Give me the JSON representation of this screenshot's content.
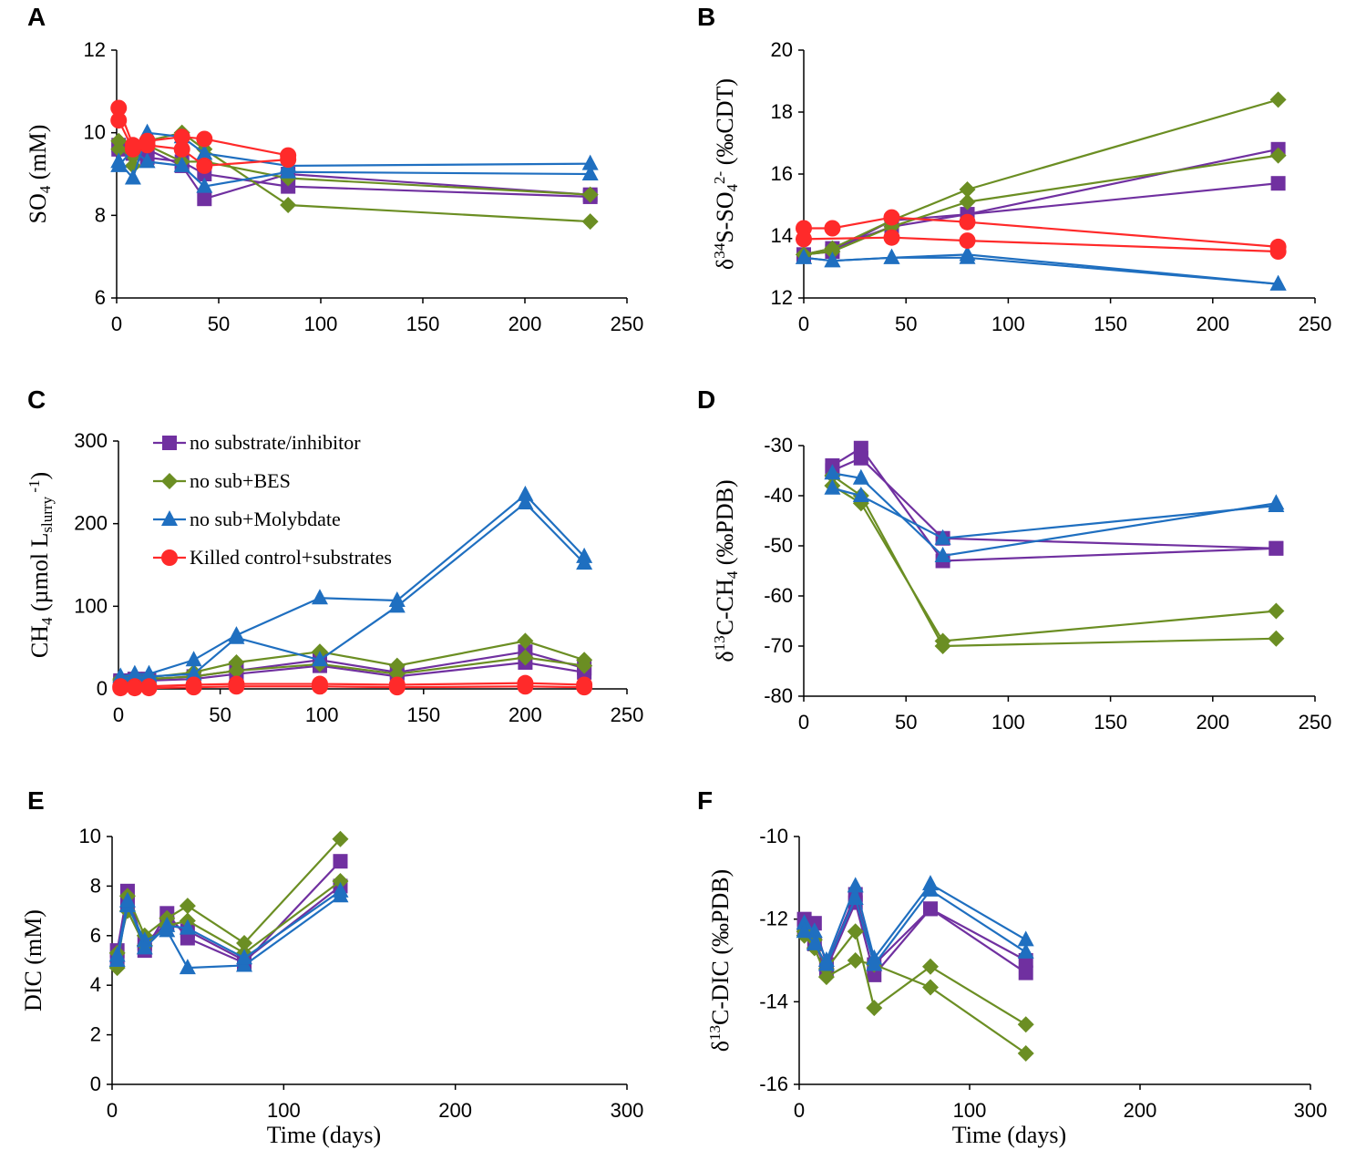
{
  "series_styles": [
    {
      "name": "no substrate/inhibitor",
      "color": "#7030A0",
      "marker": "square"
    },
    {
      "name": "no sub+BES",
      "color": "#6B8E23",
      "marker": "diamond"
    },
    {
      "name": "no sub+Molybdate",
      "color": "#1F6FC0",
      "marker": "triangle"
    },
    {
      "name": "Killed control+substrates",
      "color": "#FF2A2A",
      "marker": "circle"
    }
  ],
  "chart_data": [
    {
      "panel": "A",
      "type": "line",
      "ylabel": "SO4 (mM)",
      "ylabel_main": "SO",
      "ylabel_sub": "4",
      "ylabel_tail": " (mM)",
      "xlabel": "",
      "xlim": [
        0,
        250
      ],
      "ylim": [
        6,
        12
      ],
      "xticks": [
        "0",
        "50",
        "100",
        "150",
        "200",
        "250"
      ],
      "yticks": [
        "6",
        "8",
        "10",
        "12"
      ],
      "series": [
        {
          "style": 0,
          "x": [
            1,
            8,
            15,
            32,
            43,
            84,
            232
          ],
          "y": [
            9.6,
            9.5,
            9.4,
            9.3,
            9.0,
            8.7,
            8.45
          ]
        },
        {
          "style": 0,
          "x": [
            1,
            8,
            15,
            32,
            43,
            84,
            232
          ],
          "y": [
            9.7,
            9.5,
            9.6,
            9.2,
            8.4,
            9.0,
            8.5
          ]
        },
        {
          "style": 1,
          "x": [
            1,
            8,
            15,
            32,
            43,
            84,
            232
          ],
          "y": [
            9.8,
            9.2,
            9.8,
            10.0,
            9.6,
            8.25,
            7.85
          ]
        },
        {
          "style": 1,
          "x": [
            1,
            8,
            15,
            32,
            43,
            84,
            232
          ],
          "y": [
            9.6,
            9.5,
            9.7,
            9.3,
            9.3,
            8.9,
            8.5
          ]
        },
        {
          "style": 2,
          "x": [
            1,
            8,
            15,
            32,
            43,
            84,
            232
          ],
          "y": [
            9.3,
            8.9,
            10.0,
            9.9,
            9.5,
            9.2,
            9.25
          ]
        },
        {
          "style": 2,
          "x": [
            1,
            8,
            15,
            32,
            43,
            84,
            232
          ],
          "y": [
            9.2,
            9.6,
            9.3,
            9.2,
            8.7,
            9.05,
            9.0
          ]
        },
        {
          "style": 3,
          "x": [
            1,
            8,
            15,
            32,
            43,
            84
          ],
          "y": [
            10.6,
            9.7,
            9.8,
            9.9,
            9.85,
            9.45
          ]
        },
        {
          "style": 3,
          "x": [
            1,
            8,
            15,
            32,
            43,
            84
          ],
          "y": [
            10.3,
            9.6,
            9.7,
            9.6,
            9.2,
            9.35
          ]
        }
      ]
    },
    {
      "panel": "B",
      "type": "line",
      "ylabel": "δ34S-SO42- (‰CDT)",
      "xlabel": "",
      "xlim": [
        0,
        250
      ],
      "ylim": [
        12,
        20
      ],
      "xticks": [
        "0",
        "50",
        "100",
        "150",
        "200",
        "250"
      ],
      "yticks": [
        "12",
        "14",
        "16",
        "18",
        "20"
      ],
      "series": [
        {
          "style": 0,
          "x": [
            0,
            14,
            43,
            80,
            232
          ],
          "y": [
            13.4,
            13.6,
            14.3,
            14.7,
            16.8
          ]
        },
        {
          "style": 0,
          "x": [
            0,
            14,
            43,
            80,
            232
          ],
          "y": [
            13.4,
            13.5,
            14.5,
            14.7,
            15.7
          ]
        },
        {
          "style": 1,
          "x": [
            0,
            14,
            43,
            80,
            232
          ],
          "y": [
            13.4,
            13.6,
            14.5,
            15.5,
            18.4
          ]
        },
        {
          "style": 1,
          "x": [
            0,
            14,
            43,
            80,
            232
          ],
          "y": [
            13.4,
            13.5,
            14.3,
            15.1,
            16.6
          ]
        },
        {
          "style": 2,
          "x": [
            0,
            14,
            43,
            80,
            232
          ],
          "y": [
            13.3,
            13.2,
            13.3,
            13.4,
            12.45
          ]
        },
        {
          "style": 2,
          "x": [
            0,
            14,
            43,
            80,
            232
          ],
          "y": [
            13.3,
            13.2,
            13.3,
            13.3,
            12.45
          ]
        },
        {
          "style": 3,
          "x": [
            0,
            14,
            43,
            80,
            232
          ],
          "y": [
            14.25,
            14.25,
            14.6,
            14.45,
            13.65
          ]
        },
        {
          "style": 3,
          "x": [
            0,
            43,
            80,
            232
          ],
          "y": [
            13.9,
            13.95,
            13.85,
            13.5
          ]
        }
      ]
    },
    {
      "panel": "C",
      "type": "line",
      "ylabel": "CH4 (µmol Lslurry-1)",
      "xlabel": "",
      "xlim": [
        0,
        250
      ],
      "ylim": [
        0,
        300
      ],
      "xticks": [
        "0",
        "50",
        "100",
        "150",
        "200",
        "250"
      ],
      "yticks": [
        "0",
        "100",
        "200",
        "300"
      ],
      "legend": {
        "position": "top-left",
        "entries": [
          "no substrate/inhibitor",
          "no sub+BES",
          "no sub+Molybdate",
          "Killed control+substrates"
        ]
      },
      "series": [
        {
          "style": 0,
          "x": [
            1,
            8,
            15,
            37,
            58,
            99,
            137,
            200,
            229
          ],
          "y": [
            10,
            12,
            12,
            15,
            22,
            35,
            20,
            45,
            25
          ]
        },
        {
          "style": 0,
          "x": [
            1,
            8,
            15,
            37,
            58,
            99,
            137,
            200,
            229
          ],
          "y": [
            8,
            10,
            10,
            12,
            18,
            28,
            15,
            32,
            20
          ]
        },
        {
          "style": 1,
          "x": [
            1,
            8,
            15,
            37,
            58,
            99,
            137,
            200,
            229
          ],
          "y": [
            12,
            14,
            14,
            20,
            32,
            45,
            28,
            58,
            35
          ]
        },
        {
          "style": 1,
          "x": [
            1,
            8,
            15,
            37,
            58,
            99,
            137,
            200,
            229
          ],
          "y": [
            10,
            12,
            12,
            15,
            22,
            30,
            18,
            38,
            28
          ]
        },
        {
          "style": 2,
          "x": [
            1,
            8,
            15,
            37,
            58,
            99,
            137,
            200,
            229
          ],
          "y": [
            15,
            18,
            18,
            35,
            65,
            110,
            107,
            235,
            160
          ]
        },
        {
          "style": 2,
          "x": [
            1,
            8,
            15,
            37,
            58,
            99,
            137,
            200,
            229
          ],
          "y": [
            12,
            15,
            15,
            18,
            62,
            35,
            100,
            225,
            152
          ]
        },
        {
          "style": 3,
          "x": [
            1,
            8,
            15,
            37,
            58,
            99,
            137,
            200,
            229
          ],
          "y": [
            3,
            3,
            3,
            5,
            6,
            6,
            5,
            7,
            5
          ]
        },
        {
          "style": 3,
          "x": [
            1,
            8,
            15,
            37,
            58,
            99,
            137,
            200,
            229
          ],
          "y": [
            1,
            1,
            1,
            2,
            3,
            3,
            2,
            3,
            2
          ]
        }
      ]
    },
    {
      "panel": "D",
      "type": "line",
      "ylabel": "δ13C-CH4 (‰PDB)",
      "xlabel": "",
      "xlim": [
        0,
        250
      ],
      "ylim": [
        -80,
        -30
      ],
      "xticks": [
        "0",
        "50",
        "100",
        "150",
        "200",
        "250"
      ],
      "yticks": [
        "-80",
        "-70",
        "-60",
        "-50",
        "-40",
        "-30"
      ],
      "series": [
        {
          "style": 0,
          "x": [
            14,
            28,
            68,
            231
          ],
          "y": [
            -34,
            -30.5,
            -53,
            -50.5
          ]
        },
        {
          "style": 0,
          "x": [
            14,
            28,
            68,
            231
          ],
          "y": [
            -35,
            -32.5,
            -48.5,
            -50.5
          ]
        },
        {
          "style": 1,
          "x": [
            14,
            28,
            68,
            231
          ],
          "y": [
            -38,
            -41.5,
            -69,
            -63
          ]
        },
        {
          "style": 1,
          "x": [
            14,
            28,
            68,
            231
          ],
          "y": [
            -36,
            -40,
            -70,
            -68.5
          ]
        },
        {
          "style": 2,
          "x": [
            14,
            28,
            68,
            231
          ],
          "y": [
            -35.5,
            -36.5,
            -52,
            -41.5
          ]
        },
        {
          "style": 2,
          "x": [
            14,
            28,
            68,
            231
          ],
          "y": [
            -38.5,
            -40,
            -48.5,
            -42
          ]
        }
      ]
    },
    {
      "panel": "E",
      "type": "line",
      "ylabel": "DIC (mM)",
      "xlabel": "Time (days)",
      "xlim": [
        0,
        300
      ],
      "ylim": [
        0,
        10
      ],
      "xticks": [
        "0",
        "100",
        "200",
        "300"
      ],
      "yticks": [
        "0",
        "2",
        "4",
        "6",
        "8",
        "10"
      ],
      "series": [
        {
          "style": 0,
          "x": [
            3,
            9,
            19,
            32,
            44,
            77,
            133
          ],
          "y": [
            5.4,
            7.8,
            5.4,
            6.9,
            5.9,
            4.9,
            9.0
          ]
        },
        {
          "style": 0,
          "x": [
            3,
            9,
            19,
            32,
            44,
            77,
            133
          ],
          "y": [
            5.0,
            7.3,
            5.7,
            6.5,
            6.2,
            5.0,
            8.0
          ]
        },
        {
          "style": 1,
          "x": [
            3,
            9,
            19,
            32,
            44,
            77,
            133
          ],
          "y": [
            4.7,
            7.6,
            6.0,
            6.7,
            7.2,
            5.7,
            9.9
          ]
        },
        {
          "style": 1,
          "x": [
            3,
            9,
            19,
            32,
            44,
            77,
            133
          ],
          "y": [
            5.3,
            7.0,
            5.6,
            6.4,
            6.6,
            5.3,
            8.2
          ]
        },
        {
          "style": 2,
          "x": [
            3,
            9,
            19,
            32,
            44,
            77,
            133
          ],
          "y": [
            5.0,
            7.2,
            5.8,
            6.2,
            4.7,
            4.8,
            7.6
          ]
        },
        {
          "style": 2,
          "x": [
            3,
            9,
            19,
            32,
            44,
            77,
            133
          ],
          "y": [
            5.2,
            7.4,
            5.5,
            6.4,
            6.3,
            5.1,
            7.8
          ]
        }
      ]
    },
    {
      "panel": "F",
      "type": "line",
      "ylabel": "δ13C-DIC (‰PDB)",
      "xlabel": "Time (days)",
      "xlim": [
        0,
        300
      ],
      "ylim": [
        -16,
        -10
      ],
      "xticks": [
        "0",
        "100",
        "200",
        "300"
      ],
      "yticks": [
        "-16",
        "-14",
        "-12",
        "-10"
      ],
      "series": [
        {
          "style": 0,
          "x": [
            3,
            9,
            16,
            33,
            44,
            77,
            133
          ],
          "y": [
            -12.0,
            -12.1,
            -13.1,
            -11.4,
            -13.1,
            -11.75,
            -13.0
          ]
        },
        {
          "style": 0,
          "x": [
            3,
            9,
            16,
            33,
            44,
            77,
            133
          ],
          "y": [
            -12.2,
            -12.6,
            -13.2,
            -11.6,
            -13.35,
            -11.75,
            -13.3
          ]
        },
        {
          "style": 1,
          "x": [
            3,
            9,
            16,
            33,
            44,
            77,
            133
          ],
          "y": [
            -12.3,
            -12.5,
            -13.2,
            -12.3,
            -14.15,
            -13.15,
            -14.55
          ]
        },
        {
          "style": 1,
          "x": [
            3,
            9,
            16,
            33,
            44,
            77,
            133
          ],
          "y": [
            -12.4,
            -12.7,
            -13.4,
            -13.0,
            -13.1,
            -13.65,
            -15.25
          ]
        },
        {
          "style": 2,
          "x": [
            3,
            9,
            16,
            33,
            44,
            77,
            133
          ],
          "y": [
            -12.1,
            -12.3,
            -13.0,
            -11.2,
            -12.95,
            -11.15,
            -12.5
          ]
        },
        {
          "style": 2,
          "x": [
            3,
            9,
            16,
            33,
            44,
            77,
            133
          ],
          "y": [
            -12.3,
            -12.6,
            -13.1,
            -11.5,
            -13.1,
            -11.3,
            -12.8
          ]
        }
      ]
    }
  ]
}
